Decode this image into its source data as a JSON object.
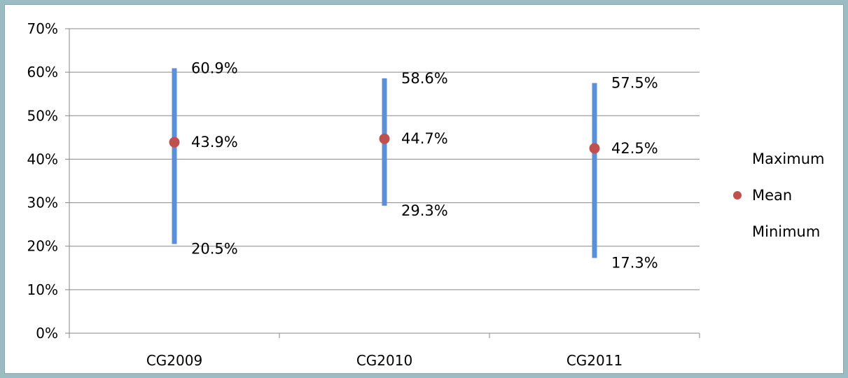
{
  "chart_data": {
    "type": "high-low-mean",
    "categories": [
      "CG2009",
      "CG2010",
      "CG2011"
    ],
    "series": [
      {
        "name": "Maximum",
        "values": [
          60.9,
          58.6,
          57.5
        ]
      },
      {
        "name": "Mean",
        "values": [
          43.9,
          44.7,
          42.5
        ]
      },
      {
        "name": "Minimum",
        "values": [
          20.5,
          29.3,
          17.3
        ]
      }
    ],
    "data_labels": {
      "max": [
        "60.9%",
        "58.6%",
        "57.5%"
      ],
      "mean": [
        "43.9%",
        "44.7%",
        "42.5%"
      ],
      "min": [
        "20.5%",
        "29.3%",
        "17.3%"
      ]
    },
    "y_ticks": [
      "0%",
      "10%",
      "20%",
      "30%",
      "40%",
      "50%",
      "60%",
      "70%"
    ],
    "ylim": [
      0,
      70
    ],
    "grid": true,
    "legend_position": "right",
    "colors": {
      "range_bar": "#5b8fd6",
      "mean_marker": "#c0504d",
      "gridline": "#878787"
    }
  }
}
